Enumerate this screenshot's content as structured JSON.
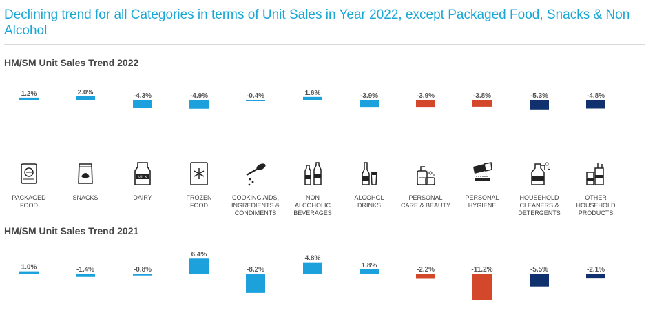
{
  "headline": "Declining trend for all Categories in terms of Unit Sales in Year 2022, except Packaged Food, Snacks & Non Alcohol",
  "colors": {
    "light_blue": "#1ca1dc",
    "orange": "#d3472b",
    "navy": "#10306e",
    "title": "#1aa7d6"
  },
  "categories": [
    {
      "label": "PACKAGED\nFOOD",
      "icon": "packaged-food-icon"
    },
    {
      "label": "SNACKS",
      "icon": "snacks-icon"
    },
    {
      "label": "DAIRY",
      "icon": "milk-carton-icon"
    },
    {
      "label": "FROZEN\nFOOD",
      "icon": "frozen-food-icon"
    },
    {
      "label": "COOKING AIDS,\nINGREDIENTS &\nCONDIMENTS",
      "icon": "spoon-icon"
    },
    {
      "label": "NON\nALCOHOLIC\nBEVERAGES",
      "icon": "bottles-icon"
    },
    {
      "label": "ALCOHOL\nDRINKS",
      "icon": "beer-bottle-icon"
    },
    {
      "label": "PERSONAL\nCARE & BEAUTY",
      "icon": "personal-care-icon"
    },
    {
      "label": "PERSONAL\nHYGIENE",
      "icon": "toothpaste-icon"
    },
    {
      "label": "HOUSEHOLD\nCLEANERS &\nDETERGENTS",
      "icon": "detergent-icon"
    },
    {
      "label": "OTHER\nHOUSEHOLD\nPRODUCTS",
      "icon": "household-products-icon"
    }
  ],
  "chart_data": [
    {
      "type": "bar",
      "title": "HM/SM Unit Sales Trend 2022",
      "categories": [
        "PACKAGED FOOD",
        "SNACKS",
        "DAIRY",
        "FROZEN FOOD",
        "COOKING AIDS, INGREDIENTS & CONDIMENTS",
        "NON ALCOHOLIC BEVERAGES",
        "ALCOHOL DRINKS",
        "PERSONAL CARE & BEAUTY",
        "PERSONAL HYGIENE",
        "HOUSEHOLD CLEANERS & DETERGENTS",
        "OTHER HOUSEHOLD PRODUCTS"
      ],
      "values": [
        1.2,
        2.0,
        -4.3,
        -4.9,
        -0.4,
        1.6,
        -3.9,
        -3.9,
        -3.8,
        -5.3,
        -4.8
      ],
      "labels": [
        "1.2%",
        "2.0%",
        "-4.3%",
        "-4.9%",
        "-0.4%",
        "1.6%",
        "-3.9%",
        "-3.9%",
        "-3.8%",
        "-5.3%",
        "-4.8%"
      ],
      "bar_colors": [
        "#1ca1dc",
        "#1ca1dc",
        "#1ca1dc",
        "#1ca1dc",
        "#1ca1dc",
        "#1ca1dc",
        "#1ca1dc",
        "#d3472b",
        "#d3472b",
        "#10306e",
        "#10306e"
      ],
      "grid": false
    },
    {
      "type": "bar",
      "title": "HM/SM Unit Sales Trend 2021",
      "categories": [
        "PACKAGED FOOD",
        "SNACKS",
        "DAIRY",
        "FROZEN FOOD",
        "COOKING AIDS, INGREDIENTS & CONDIMENTS",
        "NON ALCOHOLIC BEVERAGES",
        "ALCOHOL DRINKS",
        "PERSONAL CARE & BEAUTY",
        "PERSONAL HYGIENE",
        "HOUSEHOLD CLEANERS & DETERGENTS",
        "OTHER HOUSEHOLD PRODUCTS"
      ],
      "values": [
        1.0,
        -1.4,
        -0.8,
        6.4,
        -8.2,
        4.8,
        1.8,
        -2.2,
        -11.2,
        -5.5,
        -2.1
      ],
      "labels": [
        "1.0%",
        "-1.4%",
        "-0.8%",
        "6.4%",
        "-8.2%",
        "4.8%",
        "1.8%",
        "-2.2%",
        "-11.2%",
        "-5.5%",
        "-2.1%"
      ],
      "bar_colors": [
        "#1ca1dc",
        "#1ca1dc",
        "#1ca1dc",
        "#1ca1dc",
        "#1ca1dc",
        "#1ca1dc",
        "#1ca1dc",
        "#d3472b",
        "#d3472b",
        "#10306e",
        "#10306e"
      ],
      "grid": false
    }
  ]
}
